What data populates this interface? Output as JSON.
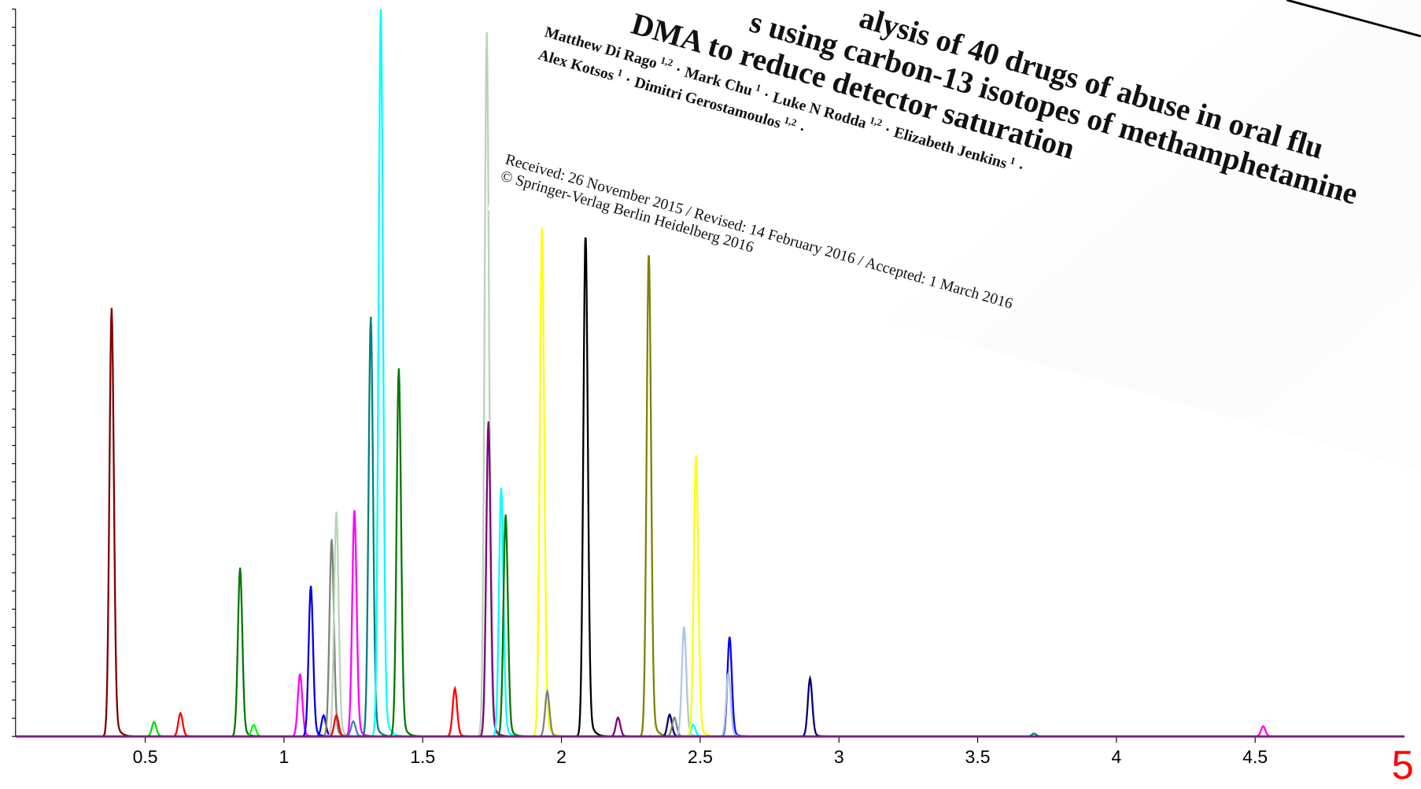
{
  "chart_data": {
    "type": "chromatogram",
    "xlim": [
      0,
      5.04
    ],
    "ylim": [
      0,
      100
    ],
    "xticks": [
      0.5,
      1,
      1.5,
      2,
      2.5,
      3,
      3.5,
      4,
      4.5
    ],
    "yticks": [
      0,
      2.5,
      5,
      7.5,
      10,
      12.5,
      15,
      17.5,
      20,
      22.5,
      25,
      27.5,
      30,
      32.5,
      35,
      37.5,
      40,
      42.5,
      45,
      47.5,
      50,
      52.5,
      55,
      57.5,
      60,
      62.5,
      65,
      67.5,
      70,
      72.5,
      75,
      77.5,
      80,
      82.5,
      85,
      87.5,
      90,
      92.5,
      95,
      97.5,
      100
    ],
    "annotation": "5",
    "baseline_color": "#7a1f7a",
    "peaks": [
      {
        "x": 0.379,
        "height": 58.9,
        "color": "#800000"
      },
      {
        "x": 0.532,
        "height": 2.0,
        "color": "#00e000"
      },
      {
        "x": 0.627,
        "height": 3.2,
        "color": "#ff0000"
      },
      {
        "x": 0.842,
        "height": 23.2,
        "color": "#007a00"
      },
      {
        "x": 0.891,
        "height": 1.6,
        "color": "#00ff00"
      },
      {
        "x": 1.058,
        "height": 8.6,
        "color": "#ff00ff"
      },
      {
        "x": 1.097,
        "height": 20.7,
        "color": "#0000e0"
      },
      {
        "x": 1.143,
        "height": 2.9,
        "color": "#0000ff"
      },
      {
        "x": 1.172,
        "height": 27.1,
        "color": "#808080"
      },
      {
        "x": 1.189,
        "height": 30.9,
        "color": "#b8d4b8"
      },
      {
        "x": 1.189,
        "height": 2.9,
        "color": "#ff0000"
      },
      {
        "x": 1.254,
        "height": 31.1,
        "color": "#ff00ff"
      },
      {
        "x": 1.25,
        "height": 2.1,
        "color": "#4682b4"
      },
      {
        "x": 1.313,
        "height": 57.7,
        "color": "#008080"
      },
      {
        "x": 1.349,
        "height": 100,
        "color": "#00ffff"
      },
      {
        "x": 1.414,
        "height": 50.6,
        "color": "#007a00"
      },
      {
        "x": 1.616,
        "height": 6.6,
        "color": "#ff0000"
      },
      {
        "x": 1.731,
        "height": 96.8,
        "color": "#b8d4b8"
      },
      {
        "x": 1.737,
        "height": 43.3,
        "color": "#800080"
      },
      {
        "x": 1.783,
        "height": 34.2,
        "color": "#00ffff"
      },
      {
        "x": 1.799,
        "height": 30.5,
        "color": "#007a00"
      },
      {
        "x": 1.93,
        "height": 69.9,
        "color": "#ffff00"
      },
      {
        "x": 1.949,
        "height": 6.2,
        "color": "#808080"
      },
      {
        "x": 2.087,
        "height": 69.4,
        "color": "#000000"
      },
      {
        "x": 2.204,
        "height": 2.6,
        "color": "#800080"
      },
      {
        "x": 2.315,
        "height": 66.7,
        "color": "#808000"
      },
      {
        "x": 2.39,
        "height": 3.0,
        "color": "#000080"
      },
      {
        "x": 2.407,
        "height": 2.6,
        "color": "#808080"
      },
      {
        "x": 2.442,
        "height": 15.1,
        "color": "#a8c8e8"
      },
      {
        "x": 2.475,
        "height": 1.6,
        "color": "#00ffff"
      },
      {
        "x": 2.485,
        "height": 38.6,
        "color": "#ffff00"
      },
      {
        "x": 2.606,
        "height": 13.7,
        "color": "#0000ff"
      },
      {
        "x": 2.602,
        "height": 8.7,
        "color": "#b0c4de"
      },
      {
        "x": 2.896,
        "height": 8.0,
        "color": "#000080"
      },
      {
        "x": 3.703,
        "height": 0.4,
        "color": "#008080"
      },
      {
        "x": 4.529,
        "height": 1.4,
        "color": "#ff00ff"
      }
    ]
  },
  "paper": {
    "title_lines": [
      "alysis of 40 drugs of abuse in oral flu",
      "s using carbon-13 isotopes of methamphetamine",
      "DMA to reduce detector saturation"
    ],
    "separator": "·",
    "authors_line1": [
      {
        "name": "Matthew Di Rago",
        "affiliation": "1,2"
      },
      {
        "name": "Mark Chu",
        "affiliation": "1"
      },
      {
        "name": "Luke N Rodda",
        "affiliation": "1,2"
      },
      {
        "name": "Elizabeth Jenkins",
        "affiliation": "1"
      }
    ],
    "authors_line2": [
      {
        "name": "Alex Kotsos",
        "affiliation": "1"
      },
      {
        "name": "Dimitri Gerostamoulos",
        "affiliation": "1,2"
      }
    ],
    "received": "Received: 26 November 2015 / Revised: 14 February 2016 / Accepted: 1 March 2016",
    "copyright": "© Springer-Verlag Berlin Heidelberg 2016"
  }
}
